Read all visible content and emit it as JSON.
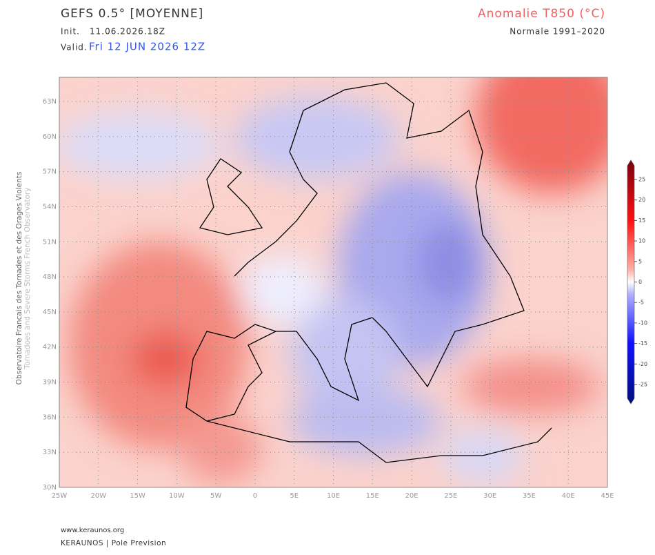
{
  "header": {
    "title": "GEFS 0.5° [MOYENNE]",
    "init_label": "Init.",
    "init_value": "11.06.2026.18Z",
    "valid_label": "Valid.",
    "valid_value": "Fri 12 JUN 2026 12Z",
    "product": "Anomalie T850 (°C)",
    "normal": "Normale 1991–2020"
  },
  "side": {
    "line1": "Observatoire Francais des Tornades et des Orages Violents",
    "line2": "Tornadoes and Severe Storms French Observatory"
  },
  "map": {
    "lat_labels": [
      "63N",
      "60N",
      "57N",
      "54N",
      "51N",
      "48N",
      "45N",
      "42N",
      "39N",
      "36N",
      "33N",
      "30N"
    ],
    "lon_labels": [
      "25W",
      "20W",
      "15W",
      "10W",
      "5W",
      "0",
      "5E",
      "10E",
      "15E",
      "20E",
      "25E",
      "30E",
      "35E",
      "40E",
      "45E"
    ]
  },
  "colorbar": {
    "labels": [
      25,
      20,
      15,
      10,
      5,
      0,
      -5,
      -10,
      -15,
      -20,
      -25
    ]
  },
  "footer": {
    "url": "www.keraunos.org",
    "brand": "KERAUNOS | Pole Prevision"
  }
}
